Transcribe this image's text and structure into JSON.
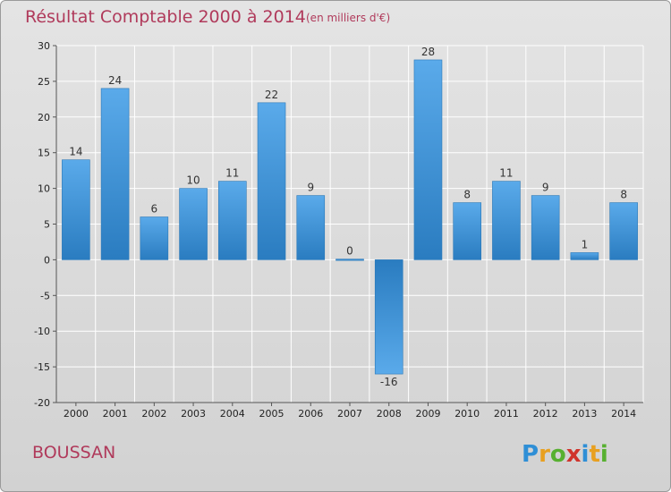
{
  "header": {
    "title": "Résultat Comptable 2000 à 2014",
    "subtitle": "(en milliers d'€)"
  },
  "footer": {
    "place": "BOUSSAN",
    "logo_letters": [
      "P",
      "r",
      "o",
      "x",
      "i",
      "t",
      "i"
    ],
    "logo_colors": [
      "#2f8fd6",
      "#e8a020",
      "#57b030",
      "#d0342c",
      "#2f8fd6",
      "#e8a020",
      "#57b030"
    ]
  },
  "colors": {
    "bar_light": "#5aaaea",
    "bar_dark": "#2a7cc0",
    "title": "#b03a5b"
  },
  "chart_data": {
    "type": "bar",
    "title": "Résultat Comptable 2000 à 2014",
    "subtitle": "(en milliers d'€)",
    "xlabel": "",
    "ylabel": "",
    "categories": [
      "2000",
      "2001",
      "2002",
      "2003",
      "2004",
      "2005",
      "2006",
      "2007",
      "2008",
      "2009",
      "2010",
      "2011",
      "2012",
      "2013",
      "2014"
    ],
    "values": [
      14,
      24,
      6,
      10,
      11,
      22,
      9,
      0,
      -16,
      28,
      8,
      11,
      9,
      1,
      8
    ],
    "labels": [
      "14",
      "24",
      "6",
      "10",
      "11",
      "22",
      "9",
      "0",
      "-16",
      "28",
      "8",
      "11",
      "9",
      "1",
      "8"
    ],
    "ylim": [
      -20,
      30
    ],
    "yticks": [
      -20,
      -15,
      -10,
      -5,
      0,
      5,
      10,
      15,
      20,
      25,
      30
    ],
    "ytick_labels": [
      "-20",
      "-15",
      "-10",
      "-5",
      "0",
      "5",
      "10",
      "15",
      "20",
      "25",
      "30"
    ],
    "grid": true
  }
}
